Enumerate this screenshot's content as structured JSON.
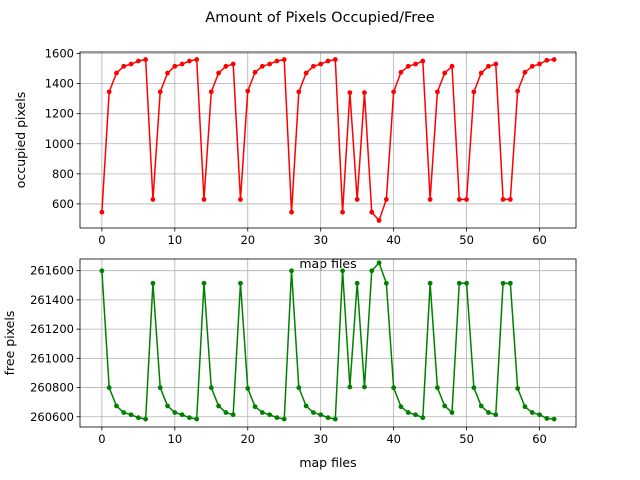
{
  "figure": {
    "title": "Amount of Pixels Occupied/Free"
  },
  "chart_data": [
    {
      "type": "line",
      "title": "",
      "xlabel": "map files",
      "ylabel": "occupied pixels",
      "xlim": [
        -3,
        65
      ],
      "ylim": [
        440,
        1610
      ],
      "xticks": [
        0,
        10,
        20,
        30,
        40,
        50,
        60
      ],
      "yticks": [
        600,
        800,
        1000,
        1200,
        1400,
        1600
      ],
      "grid": true,
      "series": [
        {
          "color": "#ff0000",
          "marker": "circle",
          "x": [
            0,
            1,
            2,
            3,
            4,
            5,
            6,
            7,
            8,
            9,
            10,
            11,
            12,
            13,
            14,
            15,
            16,
            17,
            18,
            19,
            20,
            21,
            22,
            23,
            24,
            25,
            26,
            27,
            28,
            29,
            30,
            31,
            32,
            33,
            34,
            35,
            36,
            37,
            38,
            39,
            40,
            41,
            42,
            43,
            44,
            45,
            46,
            47,
            48,
            49,
            50,
            51,
            52,
            53,
            54,
            55,
            56,
            57,
            58,
            59,
            60,
            61,
            62
          ],
          "values": [
            545,
            1345,
            1470,
            1515,
            1530,
            1550,
            1560,
            630,
            1345,
            1470,
            1515,
            1530,
            1550,
            1560,
            630,
            1345,
            1470,
            1515,
            1530,
            630,
            1350,
            1475,
            1515,
            1530,
            1550,
            1560,
            545,
            1345,
            1470,
            1515,
            1530,
            1550,
            1560,
            545,
            1340,
            630,
            1340,
            545,
            490,
            630,
            1345,
            1475,
            1515,
            1530,
            1550,
            630,
            1345,
            1470,
            1515,
            630,
            630,
            1345,
            1470,
            1515,
            1530,
            630,
            630,
            1350,
            1475,
            1515,
            1530,
            1555,
            1560
          ]
        }
      ]
    },
    {
      "type": "line",
      "title": "",
      "xlabel": "map files",
      "ylabel": "free pixels",
      "xlim": [
        -3,
        65
      ],
      "ylim": [
        260530,
        261680
      ],
      "xticks": [
        0,
        10,
        20,
        30,
        40,
        50,
        60
      ],
      "yticks": [
        260600,
        260800,
        261000,
        261200,
        261400,
        261600
      ],
      "grid": true,
      "series": [
        {
          "color": "#008000",
          "marker": "circle",
          "x": [
            0,
            1,
            2,
            3,
            4,
            5,
            6,
            7,
            8,
            9,
            10,
            11,
            12,
            13,
            14,
            15,
            16,
            17,
            18,
            19,
            20,
            21,
            22,
            23,
            24,
            25,
            26,
            27,
            28,
            29,
            30,
            31,
            32,
            33,
            34,
            35,
            36,
            37,
            38,
            39,
            40,
            41,
            42,
            43,
            44,
            45,
            46,
            47,
            48,
            49,
            50,
            51,
            52,
            53,
            54,
            55,
            56,
            57,
            58,
            59,
            60,
            61,
            62
          ],
          "values": [
            261599,
            260799,
            260674,
            260629,
            260614,
            260594,
            260584,
            261514,
            260799,
            260674,
            260629,
            260614,
            260594,
            260584,
            261514,
            260799,
            260674,
            260629,
            260614,
            261514,
            260794,
            260669,
            260629,
            260614,
            260594,
            260584,
            261599,
            260799,
            260674,
            260629,
            260614,
            260594,
            260584,
            261599,
            260804,
            261514,
            260804,
            261599,
            261654,
            261514,
            260799,
            260669,
            260629,
            260614,
            260594,
            261514,
            260799,
            260674,
            260629,
            261514,
            261514,
            260799,
            260674,
            260629,
            260614,
            261514,
            261514,
            260794,
            260669,
            260629,
            260614,
            260589,
            260584
          ]
        }
      ]
    }
  ]
}
